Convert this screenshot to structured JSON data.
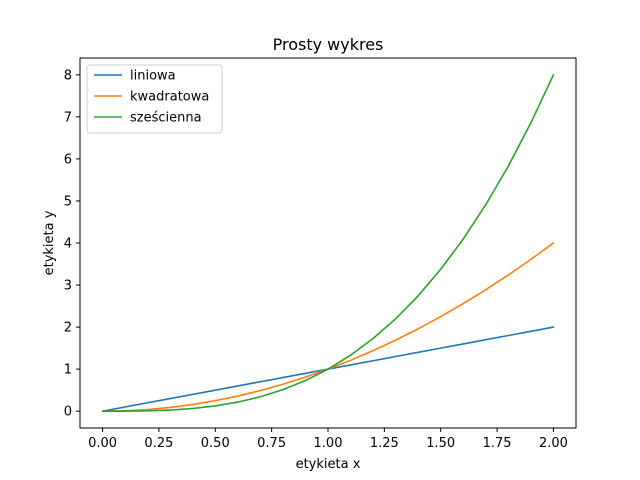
{
  "chart_data": {
    "type": "line",
    "title": "Prosty wykres",
    "xlabel": "etykieta x",
    "ylabel": "etykieta y",
    "xlim": [
      -0.1,
      2.1
    ],
    "ylim": [
      -0.4,
      8.4
    ],
    "xticks": [
      "0.00",
      "0.25",
      "0.50",
      "0.75",
      "1.00",
      "1.25",
      "1.50",
      "1.75",
      "2.00"
    ],
    "yticks": [
      "0",
      "1",
      "2",
      "3",
      "4",
      "5",
      "6",
      "7",
      "8"
    ],
    "legend_position": "top-left",
    "grid": false,
    "x": [
      0.0,
      0.1,
      0.2,
      0.3,
      0.4,
      0.5,
      0.6,
      0.7,
      0.8,
      0.9,
      1.0,
      1.1,
      1.2,
      1.3,
      1.4,
      1.5,
      1.6,
      1.7,
      1.8,
      1.9,
      2.0
    ],
    "series": [
      {
        "name": "liniowa",
        "color": "#1f77b4",
        "values": [
          0.0,
          0.1,
          0.2,
          0.3,
          0.4,
          0.5,
          0.6,
          0.7,
          0.8,
          0.9,
          1.0,
          1.1,
          1.2,
          1.3,
          1.4,
          1.5,
          1.6,
          1.7,
          1.8,
          1.9,
          2.0
        ]
      },
      {
        "name": "kwadratowa",
        "color": "#ff7f0e",
        "values": [
          0.0,
          0.01,
          0.04,
          0.09,
          0.16,
          0.25,
          0.36,
          0.49,
          0.64,
          0.81,
          1.0,
          1.21,
          1.44,
          1.69,
          1.96,
          2.25,
          2.56,
          2.89,
          3.24,
          3.61,
          4.0
        ]
      },
      {
        "name": "sześcienna",
        "color": "#2ca02c",
        "values": [
          0.0,
          0.001,
          0.008,
          0.027,
          0.064,
          0.125,
          0.216,
          0.343,
          0.512,
          0.729,
          1.0,
          1.331,
          1.728,
          2.197,
          2.744,
          3.375,
          4.096,
          4.913,
          5.832,
          6.859,
          8.0
        ]
      }
    ]
  }
}
